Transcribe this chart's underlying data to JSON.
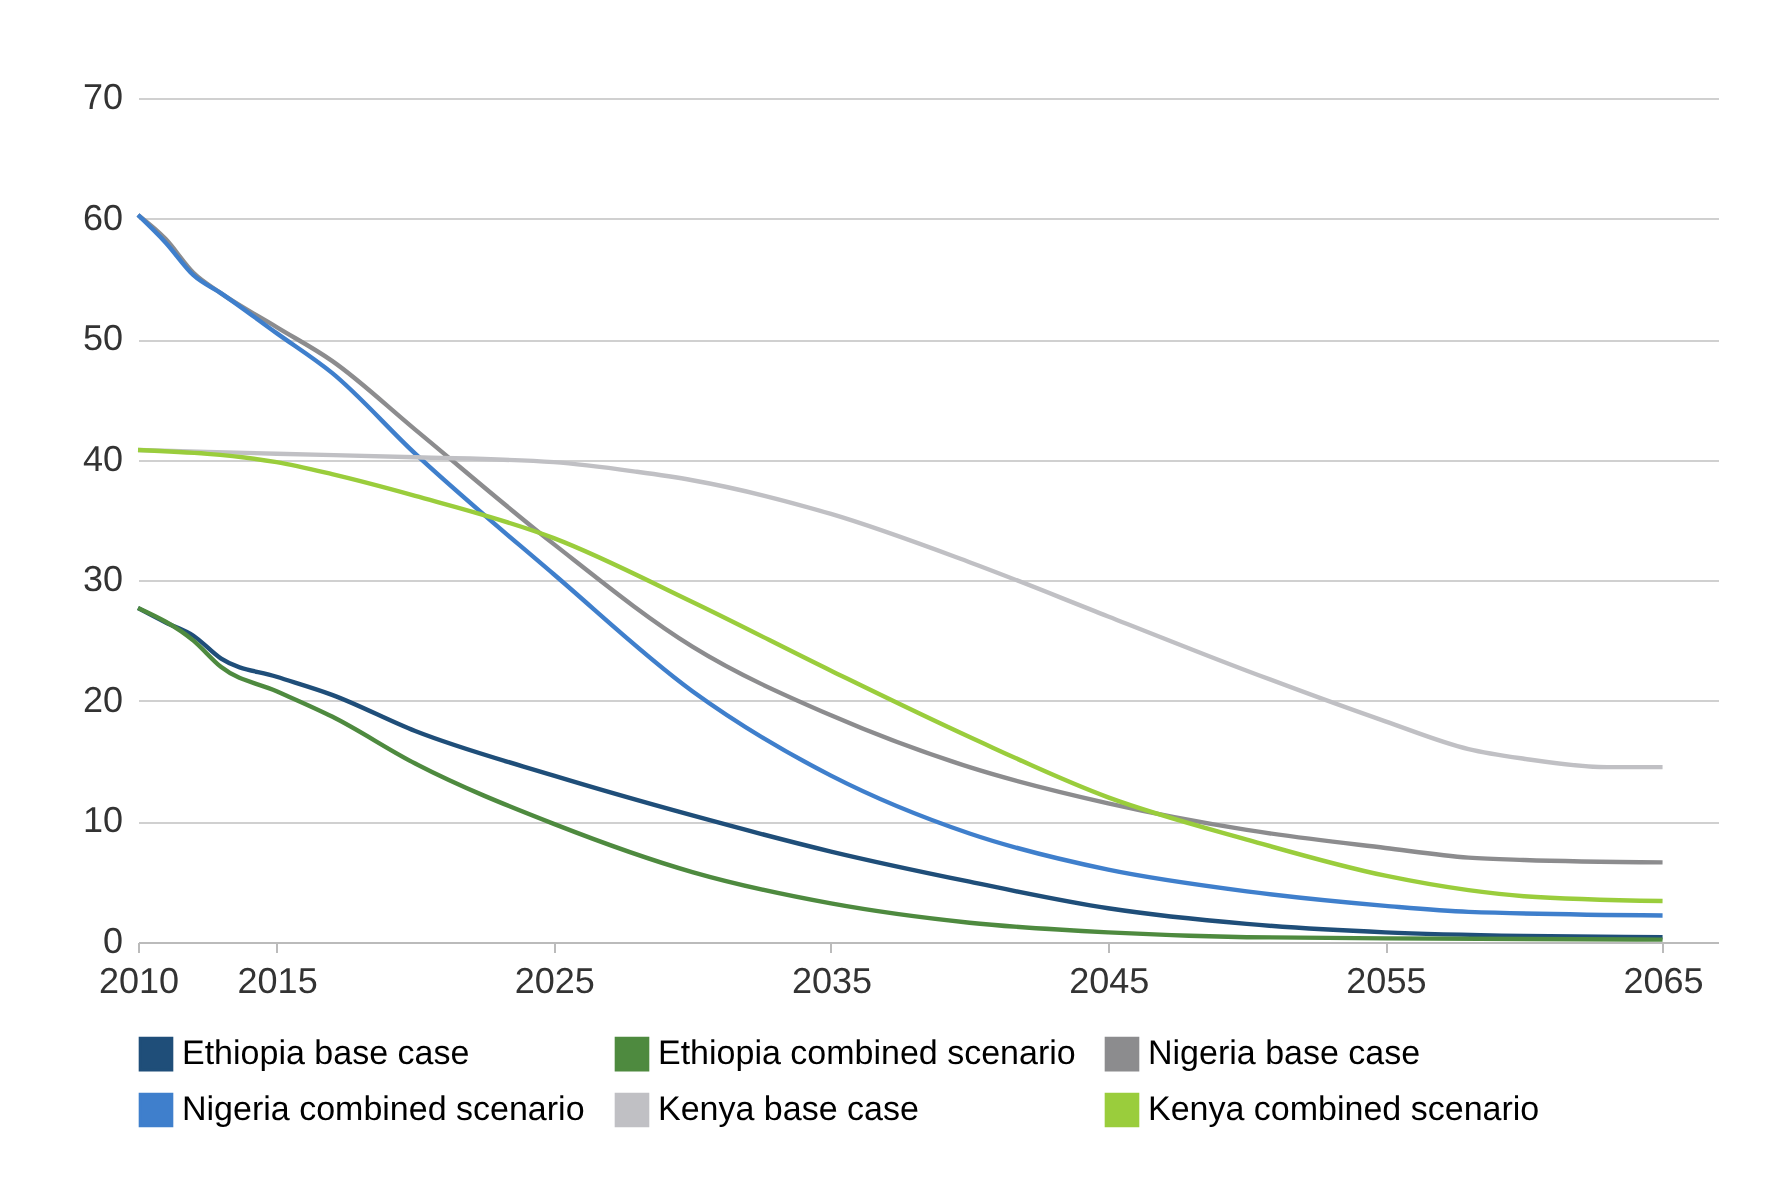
{
  "chart_data": {
    "type": "line",
    "xlim": [
      2010,
      2067
    ],
    "xticks": [
      2010,
      2015,
      2025,
      2035,
      2045,
      2055,
      2065
    ],
    "ylim": [
      0,
      70
    ],
    "yticks": [
      0,
      10,
      20,
      30,
      40,
      50,
      60,
      70
    ],
    "grid": "y",
    "legend": "bottom",
    "line_style": "solid",
    "marker": "none",
    "series": [
      {
        "name": "Ethiopia base case",
        "color": "#1f4e79",
        "x": [
          2010,
          2011,
          2012,
          2013,
          2015,
          2017,
          2020,
          2025,
          2030,
          2035,
          2040,
          2045,
          2050,
          2055,
          2060,
          2065
        ],
        "values": [
          27.7,
          26.5,
          25.4,
          23.5,
          22,
          20.5,
          17.5,
          13.8,
          10.5,
          7.5,
          5,
          2.8,
          1.5,
          0.8,
          0.5,
          0.4
        ]
      },
      {
        "name": "Ethiopia combined scenario",
        "color": "#4e8a3f",
        "x": [
          2010,
          2012,
          2013,
          2015,
          2017,
          2020,
          2025,
          2030,
          2035,
          2040,
          2045,
          2050,
          2055,
          2065
        ],
        "values": [
          27.7,
          25,
          22.8,
          20.8,
          18.7,
          14.8,
          9.8,
          5.8,
          3.2,
          1.6,
          0.8,
          0.4,
          0.3,
          0.2
        ]
      },
      {
        "name": "Nigeria base case",
        "color": "#8c8c8e",
        "x": [
          2010,
          2011,
          2012,
          2013,
          2015,
          2017,
          2020,
          2025,
          2030,
          2035,
          2040,
          2045,
          2050,
          2055,
          2058,
          2060,
          2065
        ],
        "values": [
          60.3,
          58.3,
          55.5,
          53.8,
          51,
          48.2,
          42.5,
          33,
          24.5,
          18.8,
          14.5,
          11.5,
          9.3,
          7.8,
          7,
          6.8,
          6.6
        ]
      },
      {
        "name": "Nigeria combined scenario",
        "color": "#3f7fcc",
        "x": [
          2010,
          2011,
          2012,
          2013,
          2015,
          2017,
          2020,
          2025,
          2030,
          2035,
          2040,
          2045,
          2050,
          2055,
          2058,
          2065
        ],
        "values": [
          60.3,
          58,
          55.3,
          53.8,
          50.5,
          47.2,
          40.5,
          30.5,
          20.8,
          13.8,
          9,
          6,
          4.2,
          3,
          2.5,
          2.2
        ]
      },
      {
        "name": "Kenya base case",
        "color": "#c0c0c4",
        "x": [
          2010,
          2015,
          2020,
          2025,
          2028,
          2030,
          2035,
          2040,
          2045,
          2050,
          2055,
          2058,
          2060,
          2063,
          2065
        ],
        "values": [
          40.8,
          40.5,
          40.2,
          39.8,
          39,
          38.3,
          35.5,
          31.5,
          27,
          22.5,
          18.3,
          16,
          15.2,
          14.5,
          14.5
        ]
      },
      {
        "name": "Kenya combined scenario",
        "color": "#9acd3c",
        "x": [
          2010,
          2015,
          2017,
          2020,
          2025,
          2030,
          2035,
          2040,
          2045,
          2050,
          2055,
          2058,
          2060,
          2065
        ],
        "values": [
          40.8,
          39.8,
          38.8,
          37,
          33.5,
          28.2,
          22.5,
          17,
          12,
          8.5,
          5.5,
          4.3,
          3.8,
          3.4
        ]
      }
    ]
  }
}
